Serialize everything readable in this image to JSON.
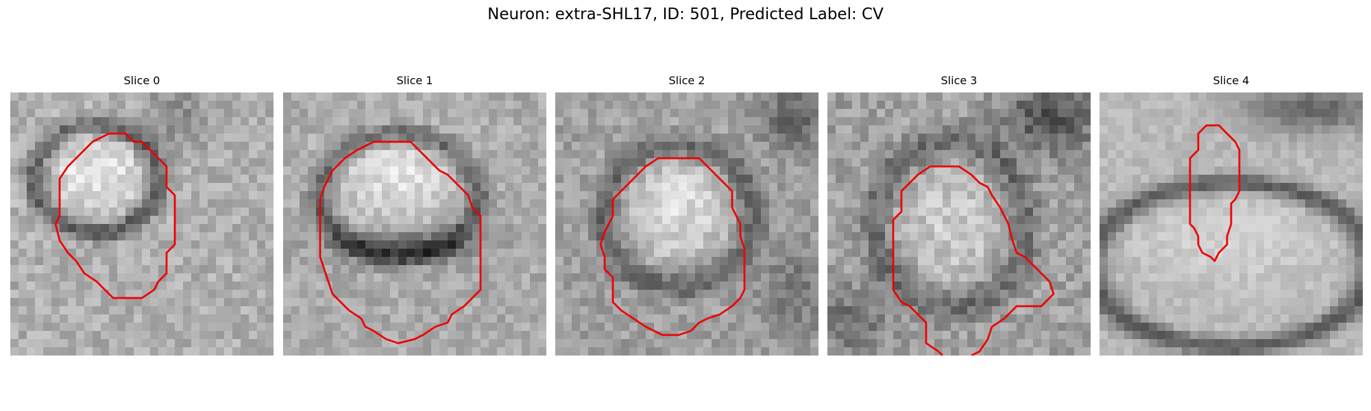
{
  "figure": {
    "title": "Neuron: extra-SHL17, ID: 501, Predicted Label: CV"
  },
  "panels": [
    {
      "title": "Slice 0"
    },
    {
      "title": "Slice 1"
    },
    {
      "title": "Slice 2"
    },
    {
      "title": "Slice 3"
    },
    {
      "title": "Slice 4"
    }
  ],
  "colors": {
    "contour": "#ee0000",
    "colormap": "grayscale"
  }
}
